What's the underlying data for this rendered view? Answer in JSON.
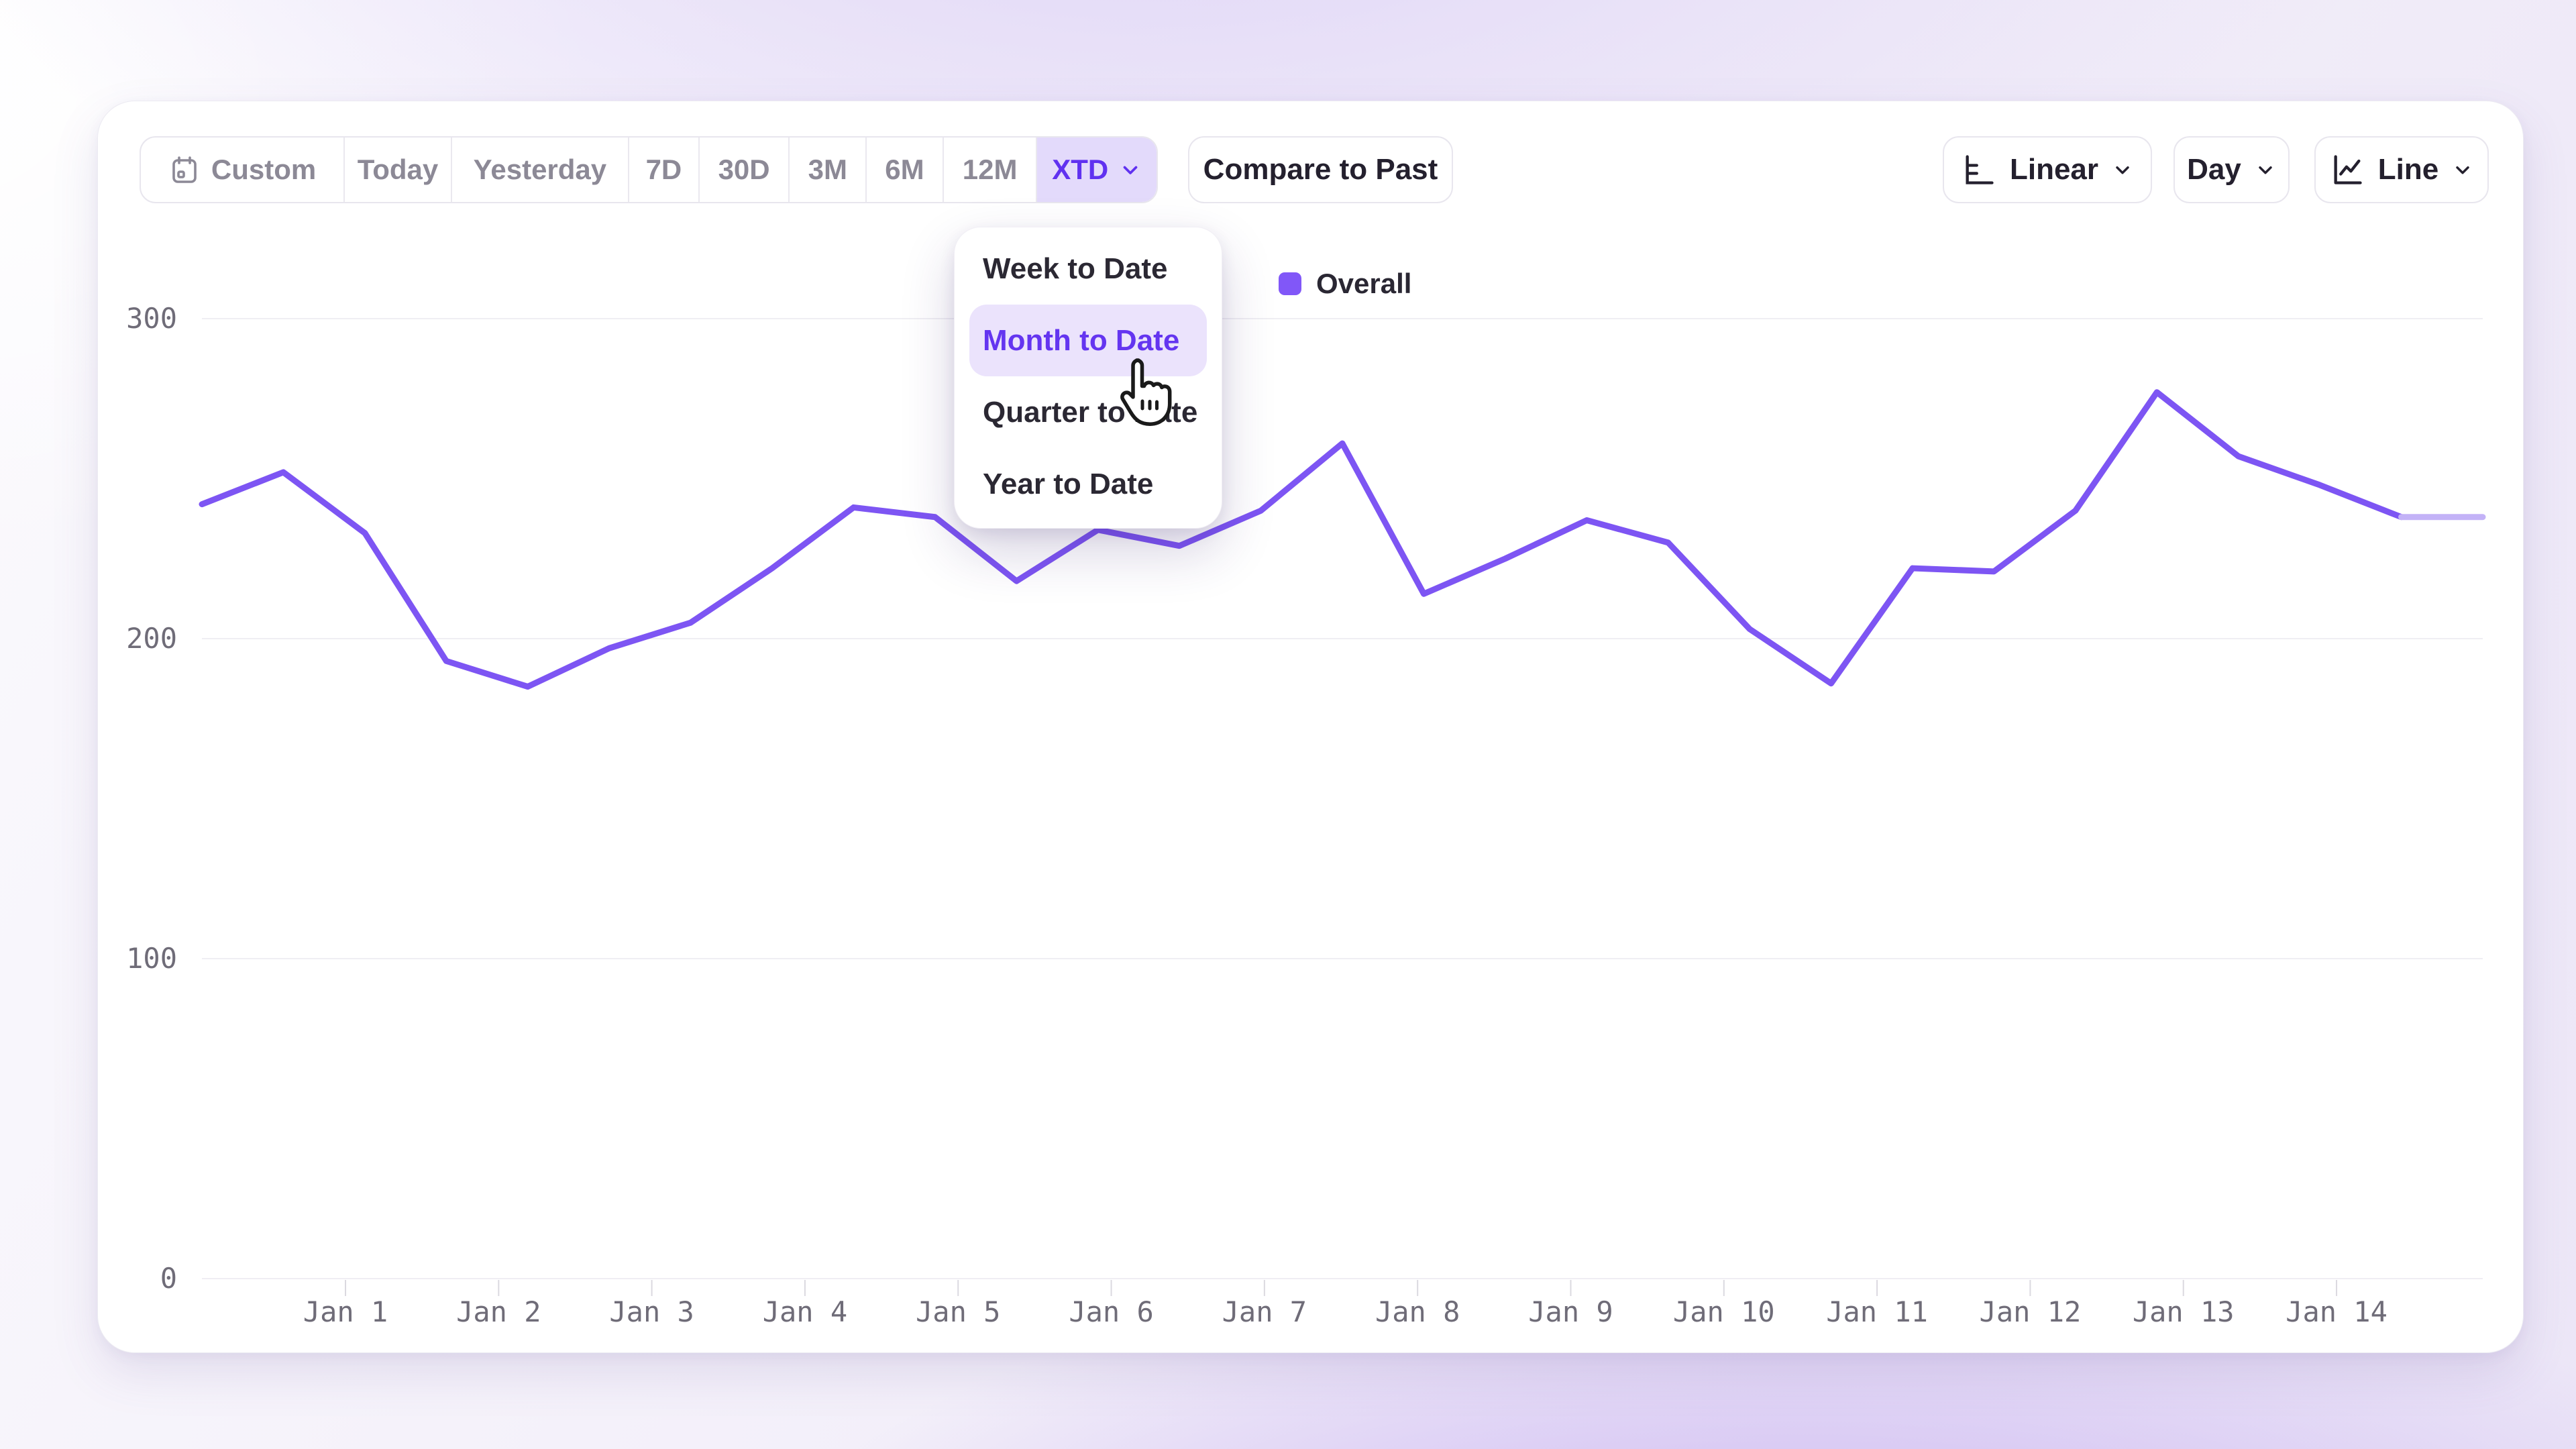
{
  "toolbar": {
    "ranges": [
      {
        "label": "Custom",
        "icon": "calendar-icon"
      },
      {
        "label": "Today"
      },
      {
        "label": "Yesterday"
      },
      {
        "label": "7D"
      },
      {
        "label": "30D"
      },
      {
        "label": "3M"
      },
      {
        "label": "6M"
      },
      {
        "label": "12M"
      },
      {
        "label": "XTD",
        "selected": true,
        "icon": "chevron-down-icon"
      }
    ],
    "compare_label": "Compare to Past",
    "scale_button": {
      "label": "Linear",
      "icon": "linear-scale-icon"
    },
    "granularity_button": {
      "label": "Day"
    },
    "chart_type_button": {
      "label": "Line",
      "icon": "line-chart-icon"
    }
  },
  "dropdown": {
    "items": [
      "Week to Date",
      "Month to Date",
      "Quarter to Date",
      "Year to Date"
    ],
    "selected_index": 1
  },
  "legend": {
    "label": "Overall",
    "color": "#8157f8"
  },
  "colors": {
    "accent": "#6031f0",
    "accent_bg": "#e3dafb",
    "line": "#7d55f3",
    "line_faded": "#c3b2f7",
    "axis_text": "#6f6c78",
    "button_text": "#24202e",
    "muted_text": "#8c8996"
  },
  "chart_data": {
    "type": "line",
    "series": [
      {
        "name": "Overall",
        "color": "#7d55f3",
        "values": [
          242,
          252,
          233,
          193,
          185,
          197,
          205,
          222,
          241,
          238,
          218,
          234,
          229,
          240,
          261,
          214,
          225,
          237,
          230,
          203,
          186,
          222,
          221,
          240,
          277,
          257,
          248,
          238,
          238
        ]
      }
    ],
    "points_per_day": 2,
    "x_labels": [
      "Jan 1",
      "Jan 2",
      "Jan 3",
      "Jan 4",
      "Jan 5",
      "Jan 6",
      "Jan 7",
      "Jan 8",
      "Jan 9",
      "Jan 10",
      "Jan 11",
      "Jan 12",
      "Jan 13",
      "Jan 14"
    ],
    "yticks": [
      0,
      100,
      200,
      300
    ],
    "ylim": [
      0,
      300
    ],
    "grid": true,
    "legend_position": "top",
    "last_segment_partial": true
  }
}
